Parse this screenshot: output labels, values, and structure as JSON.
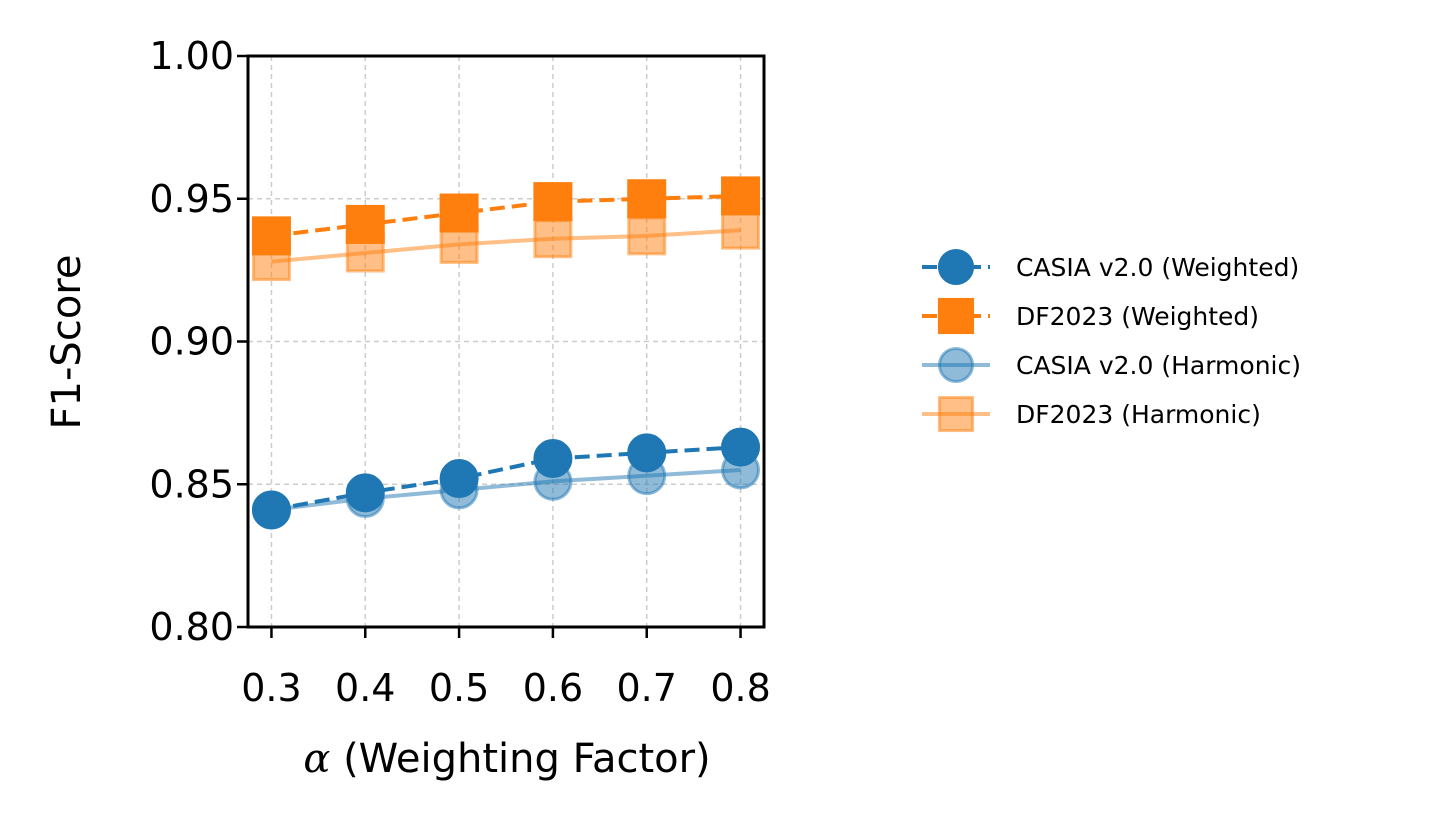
{
  "chart_data": {
    "type": "line",
    "title": "",
    "xlabel_symbol": "α",
    "xlabel_text": "(Weighting Factor)",
    "ylabel": "F1-Score",
    "x": [
      0.3,
      0.4,
      0.5,
      0.6,
      0.7,
      0.8
    ],
    "xticks": [
      "0.3",
      "0.4",
      "0.5",
      "0.6",
      "0.7",
      "0.8"
    ],
    "xlim": [
      0.275,
      0.825
    ],
    "ylim": [
      0.8,
      1.0
    ],
    "yticks": [
      "0.80",
      "0.85",
      "0.90",
      "0.95",
      "1.00"
    ],
    "ytick_values": [
      0.8,
      0.85,
      0.9,
      0.95,
      1.0
    ],
    "grid": true,
    "legend_position": "right",
    "series": [
      {
        "name": "CASIA v2.0 (Weighted)",
        "values": [
          0.841,
          0.847,
          0.852,
          0.859,
          0.861,
          0.863
        ],
        "color": "#1f77b4",
        "marker": "circle",
        "line": "dashed",
        "alpha": 1.0
      },
      {
        "name": "DF2023 (Weighted)",
        "values": [
          0.937,
          0.941,
          0.945,
          0.949,
          0.95,
          0.951
        ],
        "color": "#ff7f0e",
        "marker": "square",
        "line": "dashed",
        "alpha": 1.0
      },
      {
        "name": "CASIA v2.0 (Harmonic)",
        "values": [
          0.841,
          0.845,
          0.848,
          0.851,
          0.853,
          0.855
        ],
        "color": "#1f77b4",
        "marker": "circle",
        "line": "solid",
        "alpha": 0.5
      },
      {
        "name": "DF2023 (Harmonic)",
        "values": [
          0.928,
          0.931,
          0.934,
          0.936,
          0.937,
          0.939
        ],
        "color": "#ff7f0e",
        "marker": "square",
        "line": "solid",
        "alpha": 0.5
      }
    ]
  }
}
